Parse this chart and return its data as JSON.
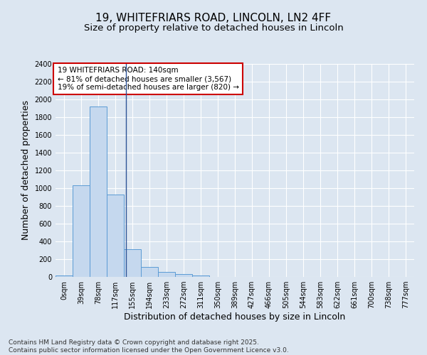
{
  "title": "19, WHITEFRIARS ROAD, LINCOLN, LN2 4FF",
  "subtitle": "Size of property relative to detached houses in Lincoln",
  "xlabel": "Distribution of detached houses by size in Lincoln",
  "ylabel": "Number of detached properties",
  "categories": [
    "0sqm",
    "39sqm",
    "78sqm",
    "117sqm",
    "155sqm",
    "194sqm",
    "233sqm",
    "272sqm",
    "311sqm",
    "350sqm",
    "389sqm",
    "427sqm",
    "466sqm",
    "505sqm",
    "544sqm",
    "583sqm",
    "622sqm",
    "661sqm",
    "700sqm",
    "738sqm",
    "777sqm"
  ],
  "values": [
    20,
    1030,
    1920,
    930,
    315,
    110,
    55,
    33,
    18,
    0,
    0,
    0,
    0,
    0,
    0,
    0,
    0,
    0,
    0,
    0,
    0
  ],
  "bar_color": "#c5d8ee",
  "bar_edge_color": "#5b9bd5",
  "background_color": "#dce6f1",
  "grid_color": "#ffffff",
  "annotation_line1": "19 WHITEFRIARS ROAD: 140sqm",
  "annotation_line2": "← 81% of detached houses are smaller (3,567)",
  "annotation_line3": "19% of semi-detached houses are larger (820) →",
  "annotation_box_facecolor": "#ffffff",
  "annotation_box_edgecolor": "#cc0000",
  "vline_x": 3.5,
  "ylim": [
    0,
    2400
  ],
  "yticks": [
    0,
    200,
    400,
    600,
    800,
    1000,
    1200,
    1400,
    1600,
    1800,
    2000,
    2200,
    2400
  ],
  "footnote": "Contains HM Land Registry data © Crown copyright and database right 2025.\nContains public sector information licensed under the Open Government Licence v3.0.",
  "title_fontsize": 11,
  "subtitle_fontsize": 9.5,
  "axis_label_fontsize": 9,
  "tick_fontsize": 7,
  "annotation_fontsize": 7.5,
  "footnote_fontsize": 6.5
}
